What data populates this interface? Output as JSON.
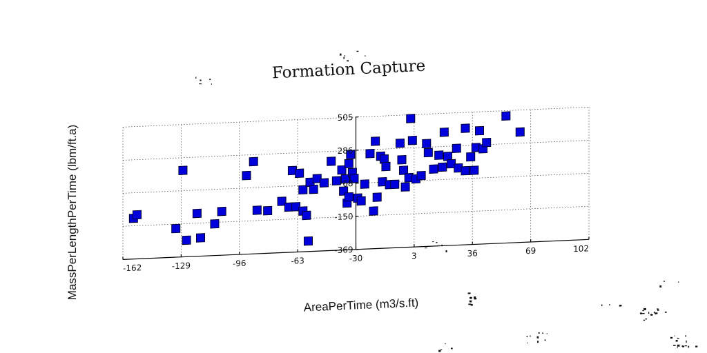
{
  "chart_data": {
    "type": "scatter",
    "title": "Formation Capture",
    "xlabel": "AreaPerTime (m3/s.ft)",
    "ylabel": "MassPerLengthPerTime (lbm/ft.a)",
    "x_ticks": [
      "-162",
      "-129",
      "-96",
      "-63",
      "-30",
      "3",
      "36",
      "69",
      "102"
    ],
    "y_ticks": [
      "-369",
      "-150",
      "68",
      "286",
      "505"
    ],
    "xlim": [
      -162,
      102
    ],
    "ylim": [
      -369,
      505
    ],
    "grid": true,
    "marker": "square",
    "colors": {
      "marker_fill": "#0000dd",
      "marker_edge": "#000033"
    },
    "series": [
      {
        "points": [
          [
            -156,
            -100
          ],
          [
            -154,
            -78
          ],
          [
            -132,
            -180
          ],
          [
            -128,
            202
          ],
          [
            -126,
            -260
          ],
          [
            -120,
            -86
          ],
          [
            -118,
            -248
          ],
          [
            -110,
            -160
          ],
          [
            -106,
            -80
          ],
          [
            -92,
            150
          ],
          [
            -88,
            240
          ],
          [
            -86,
            -82
          ],
          [
            -80,
            -88
          ],
          [
            -72,
            -30
          ],
          [
            -68,
            -70
          ],
          [
            -66,
            170
          ],
          [
            -64,
            -70
          ],
          [
            -62,
            150
          ],
          [
            -60,
            -100
          ],
          [
            -60,
            40
          ],
          [
            -58,
            -130
          ],
          [
            -57,
            -300
          ],
          [
            -56,
            88
          ],
          [
            -54,
            40
          ],
          [
            -52,
            110
          ],
          [
            -48,
            80
          ],
          [
            -44,
            220
          ],
          [
            -41,
            90
          ],
          [
            -38,
            160
          ],
          [
            -37,
            20
          ],
          [
            -36,
            100
          ],
          [
            -35,
            -60
          ],
          [
            -34,
            200
          ],
          [
            -34,
            -20
          ],
          [
            -33,
            260
          ],
          [
            -32,
            140
          ],
          [
            -31,
            100
          ],
          [
            -29,
            -30
          ],
          [
            -27,
            -50
          ],
          [
            -25,
            60
          ],
          [
            -22,
            260
          ],
          [
            -20,
            -120
          ],
          [
            -19,
            340
          ],
          [
            -18,
            -30
          ],
          [
            -16,
            240
          ],
          [
            -15,
            70
          ],
          [
            -14,
            220
          ],
          [
            -13,
            170
          ],
          [
            -11,
            50
          ],
          [
            -8,
            50
          ],
          [
            -5,
            320
          ],
          [
            -4,
            210
          ],
          [
            -3,
            140
          ],
          [
            -2,
            30
          ],
          [
            0,
            90
          ],
          [
            1,
            480
          ],
          [
            2,
            335
          ],
          [
            4,
            80
          ],
          [
            7,
            100
          ],
          [
            10,
            310
          ],
          [
            11,
            250
          ],
          [
            14,
            140
          ],
          [
            17,
            230
          ],
          [
            19,
            150
          ],
          [
            20,
            380
          ],
          [
            22,
            220
          ],
          [
            24,
            170
          ],
          [
            27,
            270
          ],
          [
            28,
            140
          ],
          [
            32,
            400
          ],
          [
            32,
            120
          ],
          [
            35,
            210
          ],
          [
            37,
            120
          ],
          [
            38,
            270
          ],
          [
            40,
            380
          ],
          [
            42,
            260
          ],
          [
            44,
            300
          ],
          [
            55,
            470
          ],
          [
            63,
            360
          ]
        ]
      }
    ]
  }
}
